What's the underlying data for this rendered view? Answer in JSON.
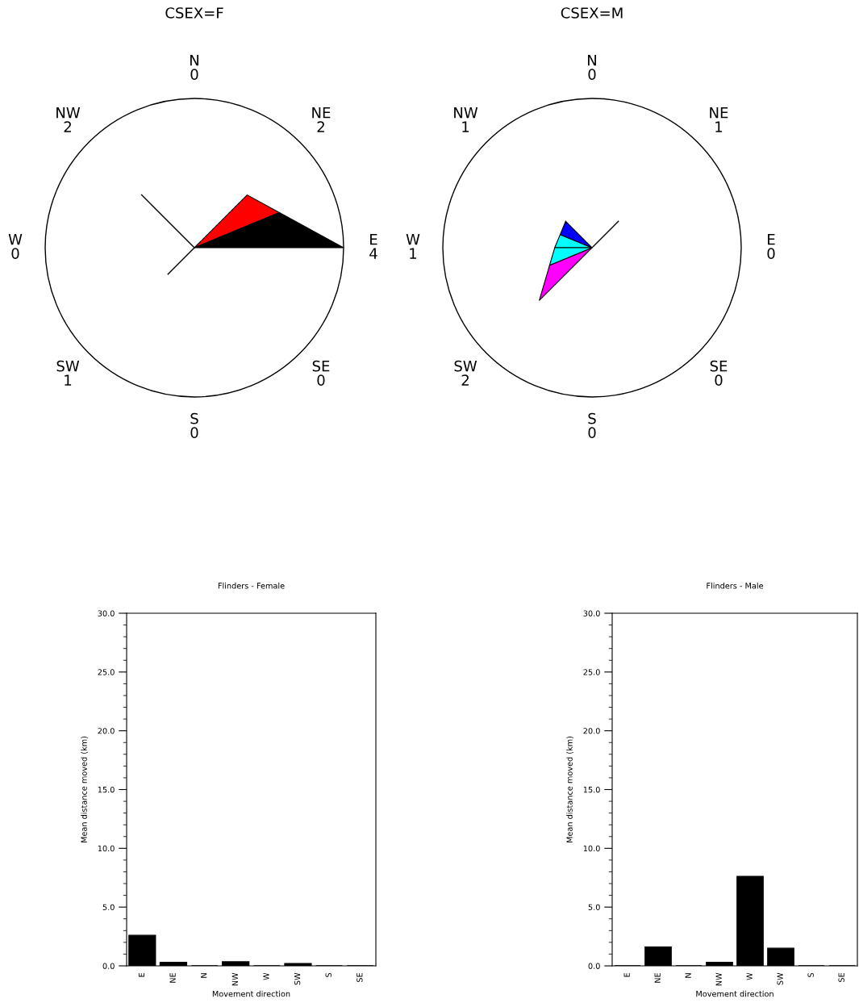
{
  "chart_data": [
    {
      "type": "other",
      "title": "CSEX=F",
      "categories": [
        "N",
        "NE",
        "E",
        "SE",
        "S",
        "SW",
        "W",
        "NW"
      ],
      "values": [
        0,
        2,
        4,
        0,
        0,
        1,
        0,
        2
      ],
      "colors": [
        "#000000",
        "#ff0000",
        "#000000",
        "#000000",
        "#000000",
        "#000000",
        "#000000",
        "#000000"
      ],
      "data_labels": true
    },
    {
      "type": "other",
      "title": "CSEX=M",
      "categories": [
        "N",
        "NE",
        "E",
        "SE",
        "S",
        "SW",
        "W",
        "NW"
      ],
      "values": [
        0,
        1,
        0,
        0,
        0,
        2,
        1,
        1
      ],
      "colors": [
        "#000000",
        "#000000",
        "#000000",
        "#000000",
        "#000000",
        "#ff00ff",
        "#00ffff",
        "#0000ff"
      ],
      "data_labels": true
    },
    {
      "type": "bar",
      "title": "Flinders - Female",
      "xlabel": "Movement direction",
      "ylabel": "Mean distance moved (km)",
      "categories": [
        "E",
        "NE",
        "N",
        "NW",
        "W",
        "SW",
        "S",
        "SE"
      ],
      "values": [
        2.6,
        0.3,
        0,
        0.35,
        0,
        0.2,
        0,
        0
      ],
      "color": "#000000",
      "ylim": [
        0,
        30
      ],
      "yticks": [
        {
          "value": 0,
          "label": "0.0"
        },
        {
          "value": 5,
          "label": "5.0"
        },
        {
          "value": 10,
          "label": "10.0"
        },
        {
          "value": 15,
          "label": "15.0"
        },
        {
          "value": 20,
          "label": "20.0"
        },
        {
          "value": 25,
          "label": "25.0"
        },
        {
          "value": 30,
          "label": "30.0"
        }
      ],
      "grid": false
    },
    {
      "type": "bar",
      "title": "Flinders - Male",
      "xlabel": "Movement direction",
      "ylabel": "Mean distance moved (km)",
      "categories": [
        "E",
        "NE",
        "N",
        "NW",
        "W",
        "SW",
        "S",
        "SE"
      ],
      "values": [
        0,
        1.6,
        0,
        0.3,
        7.6,
        1.5,
        0,
        0
      ],
      "color": "#000000",
      "ylim": [
        0,
        30
      ],
      "yticks": [
        {
          "value": 0,
          "label": "0.0"
        },
        {
          "value": 5,
          "label": "5.0"
        },
        {
          "value": 10,
          "label": "10.0"
        },
        {
          "value": 15,
          "label": "15.0"
        },
        {
          "value": 20,
          "label": "20.0"
        },
        {
          "value": 25,
          "label": "25.0"
        },
        {
          "value": 30,
          "label": "30.0"
        }
      ],
      "grid": false
    }
  ]
}
